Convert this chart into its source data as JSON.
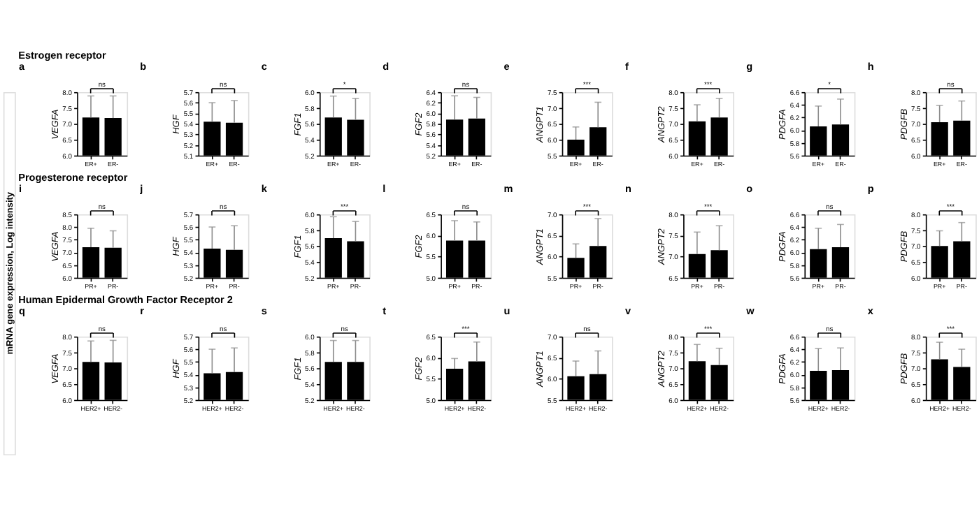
{
  "chart_data": [
    {
      "type": "bar",
      "title": "a",
      "subtitle": "Estrogen receptor",
      "ylabel": "VEGFA",
      "categories": [
        "ER+",
        "ER-"
      ],
      "values": [
        7.2,
        7.18
      ],
      "errors": [
        [
          7.2,
          7.88
        ],
        [
          7.18,
          7.88
        ]
      ],
      "color": "#000000",
      "ylim": [
        6,
        8
      ],
      "yticks": [
        {
          "value": 6,
          "label": "6.0"
        },
        6.5,
        {
          "value": 7,
          "label": "7.0"
        },
        7.5,
        {
          "value": 8,
          "label": "8.0"
        }
      ],
      "annotations": [
        "ns",
        "mRNA gene expression, Log intensity"
      ]
    },
    {
      "type": "bar",
      "title": "b",
      "ylabel": "HGF",
      "categories": [
        "ER+",
        "ER-"
      ],
      "values": [
        5.42,
        5.41
      ],
      "errors": [
        [
          5.42,
          5.6
        ],
        [
          5.41,
          5.62
        ]
      ],
      "color": "#000000",
      "ylim": [
        5.1,
        5.7
      ],
      "yticks": [
        5.1,
        5.2,
        5.3,
        5.4,
        5.5,
        5.6,
        5.7
      ],
      "annotations": [
        "ns"
      ]
    },
    {
      "type": "bar",
      "title": "c",
      "ylabel": "FGF1",
      "categories": [
        "ER+",
        "ER-"
      ],
      "values": [
        5.68,
        5.65
      ],
      "errors": [
        [
          5.68,
          5.95
        ],
        [
          5.65,
          5.92
        ]
      ],
      "color": "#000000",
      "ylim": [
        5.2,
        6
      ],
      "yticks": [
        5.2,
        5.4,
        5.6,
        5.8,
        {
          "value": 6,
          "label": "6.0"
        }
      ],
      "annotations": [
        "*"
      ]
    },
    {
      "type": "bar",
      "title": "d",
      "ylabel": "FGF2",
      "categories": [
        "ER+",
        "ER-"
      ],
      "values": [
        5.88,
        5.9
      ],
      "errors": [
        [
          5.88,
          6.33
        ],
        [
          5.9,
          6.3
        ]
      ],
      "color": "#000000",
      "ylim": [
        5.2,
        6.4
      ],
      "yticks": [
        5.2,
        5.4,
        5.6,
        5.8,
        {
          "value": 6,
          "label": "6.0"
        },
        6.2,
        6.4
      ],
      "annotations": [
        "ns"
      ]
    },
    {
      "type": "bar",
      "title": "e",
      "ylabel": "ANGPT1",
      "categories": [
        "ER+",
        "ER-"
      ],
      "values": [
        6.0,
        6.39
      ],
      "errors": [
        [
          6.0,
          6.4
        ],
        [
          6.39,
          7.18
        ]
      ],
      "color": "#000000",
      "ylim": [
        5.5,
        7.5
      ],
      "yticks": [
        5.5,
        {
          "value": 6,
          "label": "6.0"
        },
        6.5,
        {
          "value": 7,
          "label": "7.0"
        },
        7.5
      ],
      "annotations": [
        "***"
      ]
    },
    {
      "type": "bar",
      "title": "f",
      "ylabel": "ANGPT2",
      "categories": [
        "ER+",
        "ER-"
      ],
      "values": [
        7.08,
        7.2
      ],
      "errors": [
        [
          7.08,
          7.6
        ],
        [
          7.2,
          7.8
        ]
      ],
      "color": "#000000",
      "ylim": [
        6,
        8
      ],
      "yticks": [
        {
          "value": 6,
          "label": "6.0"
        },
        6.5,
        {
          "value": 7,
          "label": "7.0"
        },
        7.5,
        {
          "value": 8,
          "label": "8.0"
        }
      ],
      "annotations": [
        "***"
      ]
    },
    {
      "type": "bar",
      "title": "g",
      "ylabel": "PDGFA",
      "categories": [
        "ER+",
        "ER-"
      ],
      "values": [
        6.06,
        6.09
      ],
      "errors": [
        [
          6.06,
          6.38
        ],
        [
          6.09,
          6.49
        ]
      ],
      "color": "#000000",
      "ylim": [
        5.6,
        6.6
      ],
      "yticks": [
        5.6,
        5.8,
        {
          "value": 6,
          "label": "6.0"
        },
        6.2,
        6.4,
        6.6
      ],
      "annotations": [
        "*"
      ]
    },
    {
      "type": "bar",
      "title": "h",
      "ylabel": "PDGFB",
      "categories": [
        "ER+",
        "ER-"
      ],
      "values": [
        7.05,
        7.1
      ],
      "errors": [
        [
          7.05,
          7.58
        ],
        [
          7.1,
          7.72
        ]
      ],
      "color": "#000000",
      "ylim": [
        6,
        8
      ],
      "yticks": [
        {
          "value": 6,
          "label": "6.0"
        },
        6.5,
        {
          "value": 7,
          "label": "7.0"
        },
        7.5,
        {
          "value": 8,
          "label": "8.0"
        }
      ],
      "annotations": [
        "ns"
      ]
    },
    {
      "type": "bar",
      "title": "i",
      "subtitle": "Progesterone receptor",
      "ylabel": "VEGFA",
      "categories": [
        "PR+",
        "PR-"
      ],
      "values": [
        7.2,
        7.18
      ],
      "errors": [
        [
          7.2,
          7.95
        ],
        [
          7.18,
          7.85
        ]
      ],
      "color": "#000000",
      "ylim": [
        6,
        8.5
      ],
      "yticks": [
        {
          "value": 6,
          "label": "6.0"
        },
        6.5,
        {
          "value": 7,
          "label": "7.0"
        },
        7.5,
        {
          "value": 8,
          "label": "8.0"
        },
        8.5
      ],
      "annotations": [
        "ns"
      ]
    },
    {
      "type": "bar",
      "title": "j",
      "ylabel": "HGF",
      "categories": [
        "PR+",
        "PR-"
      ],
      "values": [
        5.43,
        5.42
      ],
      "errors": [
        [
          5.43,
          5.6
        ],
        [
          5.42,
          5.61
        ]
      ],
      "color": "#000000",
      "ylim": [
        5.2,
        5.7
      ],
      "yticks": [
        5.2,
        5.3,
        5.4,
        5.5,
        5.6,
        5.7
      ],
      "annotations": [
        "ns"
      ]
    },
    {
      "type": "bar",
      "title": "k",
      "ylabel": "FGF1",
      "categories": [
        "PR+",
        "PR-"
      ],
      "values": [
        5.7,
        5.66
      ],
      "errors": [
        [
          5.7,
          5.97
        ],
        [
          5.66,
          5.91
        ]
      ],
      "color": "#000000",
      "ylim": [
        5.2,
        6
      ],
      "yticks": [
        5.2,
        5.4,
        5.6,
        5.8,
        {
          "value": 6,
          "label": "6.0"
        }
      ],
      "annotations": [
        "***"
      ]
    },
    {
      "type": "bar",
      "title": "l",
      "ylabel": "FGF2",
      "categories": [
        "PR+",
        "PR-"
      ],
      "values": [
        5.88,
        5.88
      ],
      "errors": [
        [
          5.88,
          6.35
        ],
        [
          5.88,
          6.32
        ]
      ],
      "color": "#000000",
      "ylim": [
        5,
        6.5
      ],
      "yticks": [
        {
          "value": 5,
          "label": "5.0"
        },
        5.5,
        {
          "value": 6,
          "label": "6.0"
        },
        6.5
      ],
      "annotations": [
        "ns"
      ]
    },
    {
      "type": "bar",
      "title": "m",
      "ylabel": "ANGPT1",
      "categories": [
        "PR+",
        "PR-"
      ],
      "values": [
        5.97,
        6.25
      ],
      "errors": [
        [
          5.97,
          6.3
        ],
        [
          6.25,
          6.9
        ]
      ],
      "color": "#000000",
      "ylim": [
        5.5,
        7
      ],
      "yticks": [
        5.5,
        {
          "value": 6,
          "label": "6.0"
        },
        6.5,
        {
          "value": 7,
          "label": "7.0"
        }
      ],
      "annotations": [
        "***"
      ]
    },
    {
      "type": "bar",
      "title": "n",
      "ylabel": "ANGPT2",
      "categories": [
        "PR+",
        "PR-"
      ],
      "values": [
        7.06,
        7.15
      ],
      "errors": [
        [
          7.06,
          7.58
        ],
        [
          7.15,
          7.73
        ]
      ],
      "color": "#000000",
      "ylim": [
        6.5,
        8
      ],
      "yticks": [
        6.5,
        {
          "value": 7,
          "label": "7.0"
        },
        7.5,
        {
          "value": 8,
          "label": "8.0"
        }
      ],
      "annotations": [
        "***"
      ]
    },
    {
      "type": "bar",
      "title": "o",
      "ylabel": "PDGFA",
      "categories": [
        "PR+",
        "PR-"
      ],
      "values": [
        6.05,
        6.08
      ],
      "errors": [
        [
          6.05,
          6.38
        ],
        [
          6.08,
          6.44
        ]
      ],
      "color": "#000000",
      "ylim": [
        5.6,
        6.6
      ],
      "yticks": [
        5.6,
        5.8,
        {
          "value": 6,
          "label": "6.0"
        },
        6.2,
        6.4,
        6.6
      ],
      "annotations": [
        "ns"
      ]
    },
    {
      "type": "bar",
      "title": "p",
      "ylabel": "PDGFB",
      "categories": [
        "PR+",
        "PR-"
      ],
      "values": [
        7.0,
        7.15
      ],
      "errors": [
        [
          7.0,
          7.48
        ],
        [
          7.15,
          7.74
        ]
      ],
      "color": "#000000",
      "ylim": [
        6,
        8
      ],
      "yticks": [
        {
          "value": 6,
          "label": "6.0"
        },
        6.5,
        {
          "value": 7,
          "label": "7.0"
        },
        7.5,
        {
          "value": 8,
          "label": "8.0"
        }
      ],
      "annotations": [
        "***"
      ]
    },
    {
      "type": "bar",
      "title": "q",
      "subtitle": "Human Epidermal Growth Factor Receptor 2",
      "ylabel": "VEGFA",
      "categories": [
        "HER2+",
        "HER2-"
      ],
      "values": [
        7.2,
        7.18
      ],
      "errors": [
        [
          7.2,
          7.86
        ],
        [
          7.18,
          7.88
        ]
      ],
      "color": "#000000",
      "ylim": [
        6,
        8
      ],
      "yticks": [
        {
          "value": 6,
          "label": "6.0"
        },
        6.5,
        {
          "value": 7,
          "label": "7.0"
        },
        7.5,
        {
          "value": 8,
          "label": "8.0"
        }
      ],
      "annotations": [
        "ns"
      ]
    },
    {
      "type": "bar",
      "title": "r",
      "ylabel": "HGF",
      "categories": [
        "HER2+",
        "HER2-"
      ],
      "values": [
        5.41,
        5.42
      ],
      "errors": [
        [
          5.41,
          5.6
        ],
        [
          5.42,
          5.61
        ]
      ],
      "color": "#000000",
      "ylim": [
        5.2,
        5.7
      ],
      "yticks": [
        5.2,
        5.3,
        5.4,
        5.5,
        5.6,
        5.7
      ],
      "annotations": [
        "ns"
      ]
    },
    {
      "type": "bar",
      "title": "s",
      "ylabel": "FGF1",
      "categories": [
        "HER2+",
        "HER2-"
      ],
      "values": [
        5.68,
        5.68
      ],
      "errors": [
        [
          5.68,
          5.95
        ],
        [
          5.68,
          5.95
        ]
      ],
      "color": "#000000",
      "ylim": [
        5.2,
        6
      ],
      "yticks": [
        5.2,
        5.4,
        5.6,
        5.8,
        {
          "value": 6,
          "label": "6.0"
        }
      ],
      "annotations": [
        "ns"
      ]
    },
    {
      "type": "bar",
      "title": "t",
      "ylabel": "FGF2",
      "categories": [
        "HER2+",
        "HER2-"
      ],
      "values": [
        5.74,
        5.91
      ],
      "errors": [
        [
          5.74,
          5.98
        ],
        [
          5.91,
          6.37
        ]
      ],
      "color": "#000000",
      "ylim": [
        5,
        6.5
      ],
      "yticks": [
        {
          "value": 5,
          "label": "5.0"
        },
        5.5,
        {
          "value": 6,
          "label": "6.0"
        },
        6.5
      ],
      "annotations": [
        "***"
      ]
    },
    {
      "type": "bar",
      "title": "u",
      "ylabel": "ANGPT1",
      "categories": [
        "HER2+",
        "HER2-"
      ],
      "values": [
        6.06,
        6.11
      ],
      "errors": [
        [
          6.06,
          6.42
        ],
        [
          6.11,
          6.66
        ]
      ],
      "color": "#000000",
      "ylim": [
        5.5,
        7
      ],
      "yticks": [
        5.5,
        {
          "value": 6,
          "label": "6.0"
        },
        6.5,
        {
          "value": 7,
          "label": "7.0"
        }
      ],
      "annotations": [
        "ns"
      ]
    },
    {
      "type": "bar",
      "title": "v",
      "ylabel": "ANGPT2",
      "categories": [
        "HER2+",
        "HER2-"
      ],
      "values": [
        7.22,
        7.1
      ],
      "errors": [
        [
          7.22,
          7.75
        ],
        [
          7.1,
          7.63
        ]
      ],
      "color": "#000000",
      "ylim": [
        6,
        8
      ],
      "yticks": [
        {
          "value": 6,
          "label": "6.0"
        },
        6.5,
        {
          "value": 7,
          "label": "7.0"
        },
        7.5,
        {
          "value": 8,
          "label": "8.0"
        }
      ],
      "annotations": [
        "***"
      ]
    },
    {
      "type": "bar",
      "title": "w",
      "ylabel": "PDGFA",
      "categories": [
        "HER2+",
        "HER2-"
      ],
      "values": [
        6.06,
        6.07
      ],
      "errors": [
        [
          6.06,
          6.41
        ],
        [
          6.07,
          6.42
        ]
      ],
      "color": "#000000",
      "ylim": [
        5.6,
        6.6
      ],
      "yticks": [
        5.6,
        5.8,
        {
          "value": 6,
          "label": "6.0"
        },
        6.2,
        6.4,
        6.6
      ],
      "annotations": [
        "ns"
      ]
    },
    {
      "type": "bar",
      "title": "x",
      "ylabel": "PDGFB",
      "categories": [
        "HER2+",
        "HER2-"
      ],
      "values": [
        7.28,
        7.04
      ],
      "errors": [
        [
          7.28,
          7.82
        ],
        [
          7.04,
          7.6
        ]
      ],
      "color": "#000000",
      "ylim": [
        6,
        8
      ],
      "yticks": [
        {
          "value": 6,
          "label": "6.0"
        },
        6.5,
        {
          "value": 7,
          "label": "7.0"
        },
        7.5,
        {
          "value": 8,
          "label": "8.0"
        }
      ],
      "annotations": [
        "***"
      ]
    }
  ]
}
